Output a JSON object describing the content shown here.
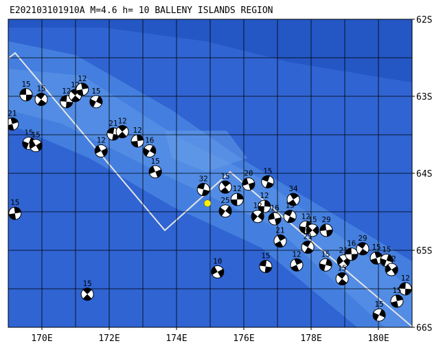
{
  "title": "E202103101910A M=4.6 h= 10 BALLENY ISLANDS REGION",
  "lon_lim": [
    169,
    181
  ],
  "lat_lim": [
    62,
    66
  ],
  "lon_ticks": [
    {
      "value": 170,
      "label": "170E"
    },
    {
      "value": 172,
      "label": "172E"
    },
    {
      "value": 174,
      "label": "174E"
    },
    {
      "value": 176,
      "label": "176E"
    },
    {
      "value": 178,
      "label": "178E"
    },
    {
      "value": 180,
      "label": "180E"
    }
  ],
  "lat_ticks": [
    {
      "value": 62,
      "label": "62S"
    },
    {
      "value": 63,
      "label": "63S"
    },
    {
      "value": 64,
      "label": "64S"
    },
    {
      "value": 65,
      "label": "65S"
    },
    {
      "value": 66,
      "label": "66S"
    }
  ],
  "lon_grid": [
    170,
    171,
    172,
    173,
    174,
    175,
    176,
    177,
    178,
    179,
    180
  ],
  "lat_grid": [
    62.5,
    63,
    63.5,
    64,
    64.5,
    65,
    65.5
  ],
  "epicenter": {
    "lon": 174.92,
    "lat": 64.39,
    "color": "#ffee00"
  },
  "events": [
    {
      "lon": 169.53,
      "lat": 62.98,
      "label": "15"
    },
    {
      "lon": 169.98,
      "lat": 63.04,
      "label": "15"
    },
    {
      "lon": 169.12,
      "lat": 63.36,
      "label": "21"
    },
    {
      "lon": 169.61,
      "lat": 63.61,
      "label": "15"
    },
    {
      "lon": 169.82,
      "lat": 63.64,
      "label": "15"
    },
    {
      "lon": 170.73,
      "lat": 63.07,
      "label": "12"
    },
    {
      "lon": 170.99,
      "lat": 62.99,
      "label": "12"
    },
    {
      "lon": 171.2,
      "lat": 62.91,
      "label": "12"
    },
    {
      "lon": 171.61,
      "lat": 63.07,
      "label": "15"
    },
    {
      "lon": 171.76,
      "lat": 63.71,
      "label": "12"
    },
    {
      "lon": 172.12,
      "lat": 63.49,
      "label": "21"
    },
    {
      "lon": 172.39,
      "lat": 63.46,
      "label": "12"
    },
    {
      "lon": 172.84,
      "lat": 63.58,
      "label": "12"
    },
    {
      "lon": 173.2,
      "lat": 63.71,
      "label": "16"
    },
    {
      "lon": 173.37,
      "lat": 63.98,
      "label": "15"
    },
    {
      "lon": 174.8,
      "lat": 64.21,
      "label": "32"
    },
    {
      "lon": 175.45,
      "lat": 64.18,
      "label": "15"
    },
    {
      "lon": 175.8,
      "lat": 64.34,
      "label": "12"
    },
    {
      "lon": 175.45,
      "lat": 64.49,
      "label": "25"
    },
    {
      "lon": 176.14,
      "lat": 64.14,
      "label": "20"
    },
    {
      "lon": 176.71,
      "lat": 64.11,
      "label": "15"
    },
    {
      "lon": 177.47,
      "lat": 64.34,
      "label": "34"
    },
    {
      "lon": 176.61,
      "lat": 64.43,
      "label": "12"
    },
    {
      "lon": 176.41,
      "lat": 64.56,
      "label": "12"
    },
    {
      "lon": 176.92,
      "lat": 64.59,
      "label": "16"
    },
    {
      "lon": 177.37,
      "lat": 64.56,
      "label": "15"
    },
    {
      "lon": 177.08,
      "lat": 64.88,
      "label": "21"
    },
    {
      "lon": 177.84,
      "lat": 64.7,
      "label": "12"
    },
    {
      "lon": 178.04,
      "lat": 64.74,
      "label": "15"
    },
    {
      "lon": 178.45,
      "lat": 64.74,
      "label": "29"
    },
    {
      "lon": 177.9,
      "lat": 64.96,
      "label": "21"
    },
    {
      "lon": 177.57,
      "lat": 65.19,
      "label": "12"
    },
    {
      "lon": 178.43,
      "lat": 65.19,
      "label": "15"
    },
    {
      "lon": 178.96,
      "lat": 65.14,
      "label": "21"
    },
    {
      "lon": 179.2,
      "lat": 65.05,
      "label": "16"
    },
    {
      "lon": 179.53,
      "lat": 64.98,
      "label": "29"
    },
    {
      "lon": 179.94,
      "lat": 65.1,
      "label": "15"
    },
    {
      "lon": 180.24,
      "lat": 65.13,
      "label": "15"
    },
    {
      "lon": 180.39,
      "lat": 65.25,
      "label": "12"
    },
    {
      "lon": 180.8,
      "lat": 65.5,
      "label": "12"
    },
    {
      "lon": 178.92,
      "lat": 65.37,
      "label": "15"
    },
    {
      "lon": 180.55,
      "lat": 65.66,
      "label": "15"
    },
    {
      "lon": 180.02,
      "lat": 65.84,
      "label": "15"
    },
    {
      "lon": 175.22,
      "lat": 65.28,
      "label": "10"
    },
    {
      "lon": 176.65,
      "lat": 65.21,
      "label": "15"
    },
    {
      "lon": 171.35,
      "lat": 65.57,
      "label": "15"
    },
    {
      "lon": 169.2,
      "lat": 64.52,
      "label": "15"
    }
  ]
}
